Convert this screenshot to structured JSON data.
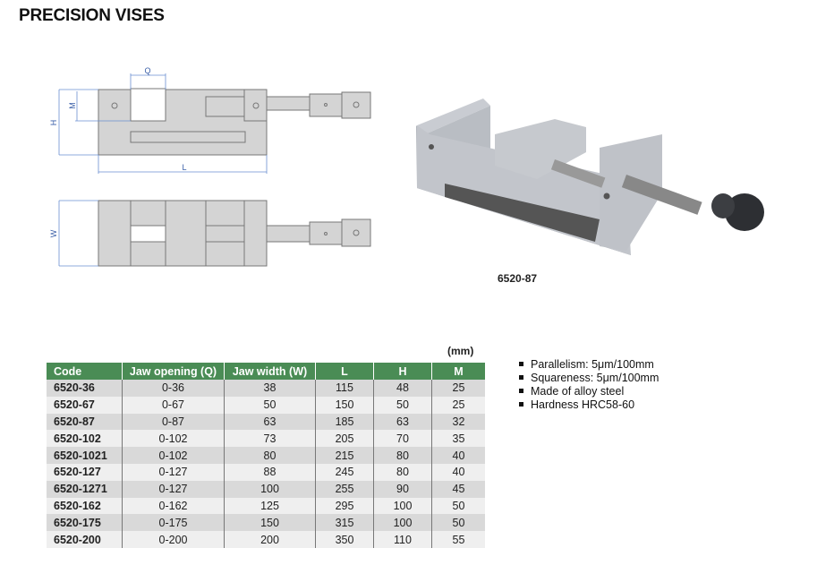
{
  "title": "PRECISION VISES",
  "drawing": {
    "labels": {
      "q": "Q",
      "m": "M",
      "h": "H",
      "l": "L",
      "w": "W"
    }
  },
  "photo": {
    "caption": "6520-87"
  },
  "table": {
    "unit": "(mm)",
    "header_color": "#4a8c55",
    "columns": [
      "Code",
      "Jaw opening (Q)",
      "Jaw width (W)",
      "L",
      "H",
      "M"
    ],
    "rows": [
      [
        "6520-36",
        "0-36",
        "38",
        "115",
        "48",
        "25"
      ],
      [
        "6520-67",
        "0-67",
        "50",
        "150",
        "50",
        "25"
      ],
      [
        "6520-87",
        "0-87",
        "63",
        "185",
        "63",
        "32"
      ],
      [
        "6520-102",
        "0-102",
        "73",
        "205",
        "70",
        "35"
      ],
      [
        "6520-1021",
        "0-102",
        "80",
        "215",
        "80",
        "40"
      ],
      [
        "6520-127",
        "0-127",
        "88",
        "245",
        "80",
        "40"
      ],
      [
        "6520-1271",
        "0-127",
        "100",
        "255",
        "90",
        "45"
      ],
      [
        "6520-162",
        "0-162",
        "125",
        "295",
        "100",
        "50"
      ],
      [
        "6520-175",
        "0-175",
        "150",
        "315",
        "100",
        "50"
      ],
      [
        "6520-200",
        "0-200",
        "200",
        "350",
        "110",
        "55"
      ]
    ]
  },
  "features": [
    "Parallelism: 5μm/100mm",
    "Squareness: 5μm/100mm",
    "Made of alloy steel",
    "Hardness HRC58-60"
  ]
}
